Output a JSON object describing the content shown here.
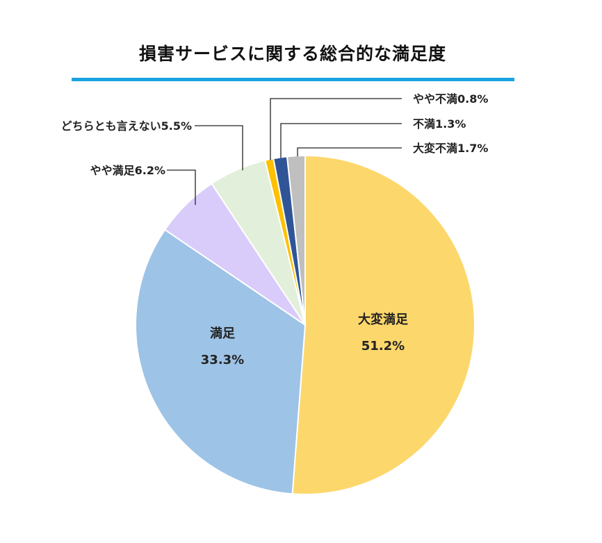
{
  "chart_data": {
    "type": "pie",
    "title": "損害サービスに関する総合的な満足度",
    "slices": [
      {
        "name": "大変満足",
        "value": 51.2,
        "label_text": "51.2%",
        "color": "#FCD76B",
        "label_style": "inside"
      },
      {
        "name": "満足",
        "value": 33.3,
        "label_text": "33.3%",
        "color": "#9DC3E6",
        "label_style": "inside"
      },
      {
        "name": "やや満足",
        "value": 6.2,
        "label_text": "やや満足6.2%",
        "color": "#D9CCFB",
        "label_style": "callout"
      },
      {
        "name": "どちらとも言えない",
        "value": 5.5,
        "label_text": "どちらとも言えない5.5%",
        "color": "#E2EFDA",
        "label_style": "callout"
      },
      {
        "name": "やや不満",
        "value": 0.8,
        "label_text": "やや不満0.8%",
        "color": "#FFC000",
        "label_style": "callout"
      },
      {
        "name": "不満",
        "value": 1.3,
        "label_text": "不満1.3%",
        "color": "#2F5597",
        "label_style": "callout"
      },
      {
        "name": "大変不満",
        "value": 1.7,
        "label_text": "大変不満1.7%",
        "color": "#BFBFBF",
        "label_style": "callout"
      }
    ],
    "start": "12 o'clock",
    "direction": "clockwise",
    "title_rule_color": "#1AA3E0"
  }
}
